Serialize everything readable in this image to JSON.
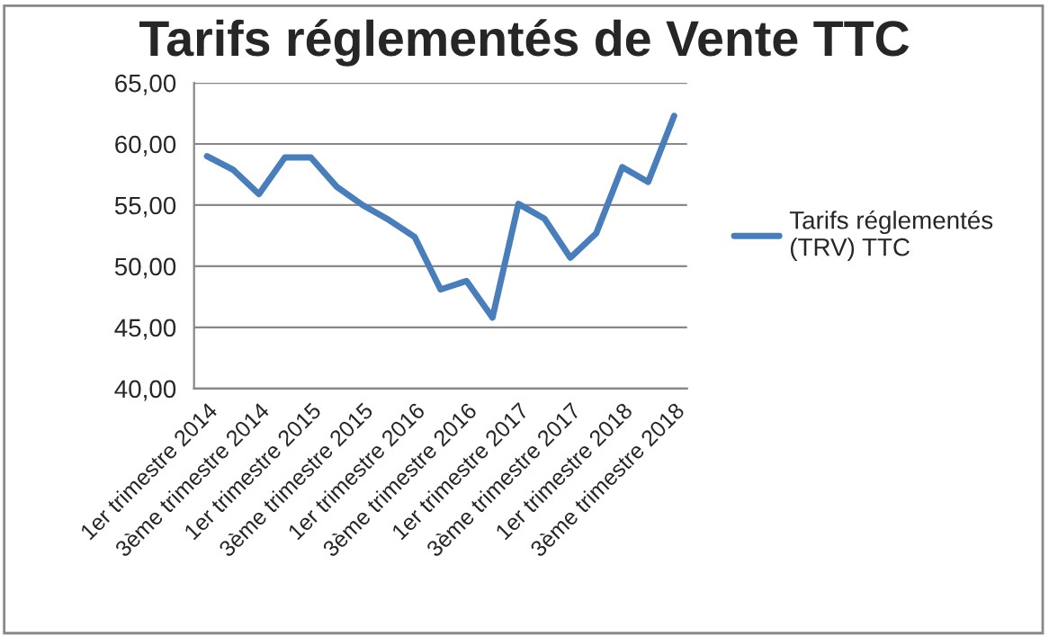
{
  "chart_data": {
    "type": "line",
    "title": "Tarifs réglementés de Vente TTC",
    "categories": [
      "1er trimestre 2014",
      null,
      "3ème trimestre 2014",
      null,
      "1er trimestre 2015",
      null,
      "3ème trimestre 2015",
      null,
      "1er trimestre 2016",
      null,
      "3ème trimestre 2016",
      null,
      "1er trimestre 2017",
      null,
      "3ème trimestre 2017",
      null,
      "1er trimestre 2018",
      null,
      "3ème trimestre 2018"
    ],
    "series": [
      {
        "name": "Tarifs réglementés (TRV) TTC",
        "color": "#4a7ebb",
        "values": [
          59.0,
          57.9,
          55.9,
          58.9,
          58.9,
          56.5,
          55.0,
          53.8,
          52.4,
          48.1,
          48.8,
          45.8,
          55.1,
          53.9,
          50.7,
          52.7,
          58.1,
          56.9,
          62.3
        ]
      }
    ],
    "ylim": [
      40,
      65
    ],
    "yticks": [
      {
        "value": 40,
        "label": "40,00"
      },
      {
        "value": 45,
        "label": "45,00"
      },
      {
        "value": 50,
        "label": "50,00"
      },
      {
        "value": 55,
        "label": "55,00"
      },
      {
        "value": 60,
        "label": "60,00"
      },
      {
        "value": 65,
        "label": "65,00"
      }
    ],
    "grid": "y",
    "legend": "right",
    "marker": "none",
    "line_style": "solid"
  }
}
